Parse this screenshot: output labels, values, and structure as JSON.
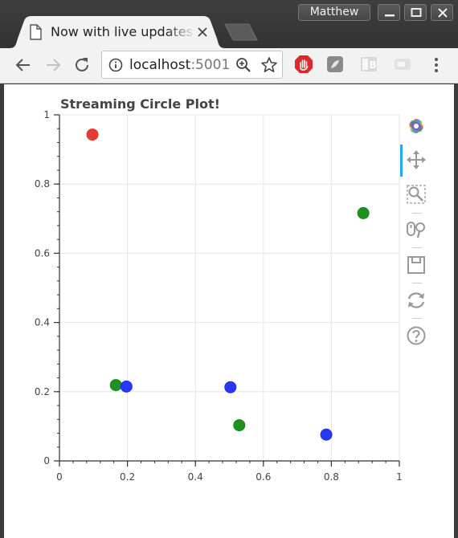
{
  "window": {
    "profile_name": "Matthew"
  },
  "tab": {
    "title": "Now with live updates!",
    "icon": "document-icon"
  },
  "toolbar": {
    "url_host": "localhost",
    "url_port": ":5001",
    "icons": [
      "back-arrow-icon",
      "forward-arrow-icon",
      "reload-icon",
      "info-icon",
      "zoom-icon",
      "star-icon",
      "adblock-icon",
      "extension-icon",
      "bookmark-extension-icon",
      "camera-extension-icon",
      "menu-icon"
    ]
  },
  "plot_tools": [
    "bokeh-logo",
    "pan-tool-icon",
    "box-zoom-tool-icon",
    "wheel-zoom-tool-icon",
    "save-tool-icon",
    "reset-tool-icon",
    "help-tool-icon"
  ],
  "chart_data": {
    "type": "scatter",
    "title": "Streaming Circle Plot!",
    "xlim": [
      0,
      1
    ],
    "ylim": [
      0,
      1
    ],
    "x_ticks": [
      "0",
      "0.2",
      "0.4",
      "0.6",
      "0.8",
      "1"
    ],
    "y_ticks": [
      "0",
      "0.2",
      "0.4",
      "0.6",
      "0.8",
      "1"
    ],
    "grid": true,
    "points": [
      {
        "x": 0.097,
        "y": 0.943,
        "color": "#e0332a"
      },
      {
        "x": 0.894,
        "y": 0.716,
        "color": "#148a14"
      },
      {
        "x": 0.166,
        "y": 0.219,
        "color": "#148a14"
      },
      {
        "x": 0.197,
        "y": 0.215,
        "color": "#1f2cf2"
      },
      {
        "x": 0.503,
        "y": 0.213,
        "color": "#1f2cf2"
      },
      {
        "x": 0.529,
        "y": 0.103,
        "color": "#148a14"
      },
      {
        "x": 0.785,
        "y": 0.076,
        "color": "#1f2cf2"
      }
    ]
  }
}
